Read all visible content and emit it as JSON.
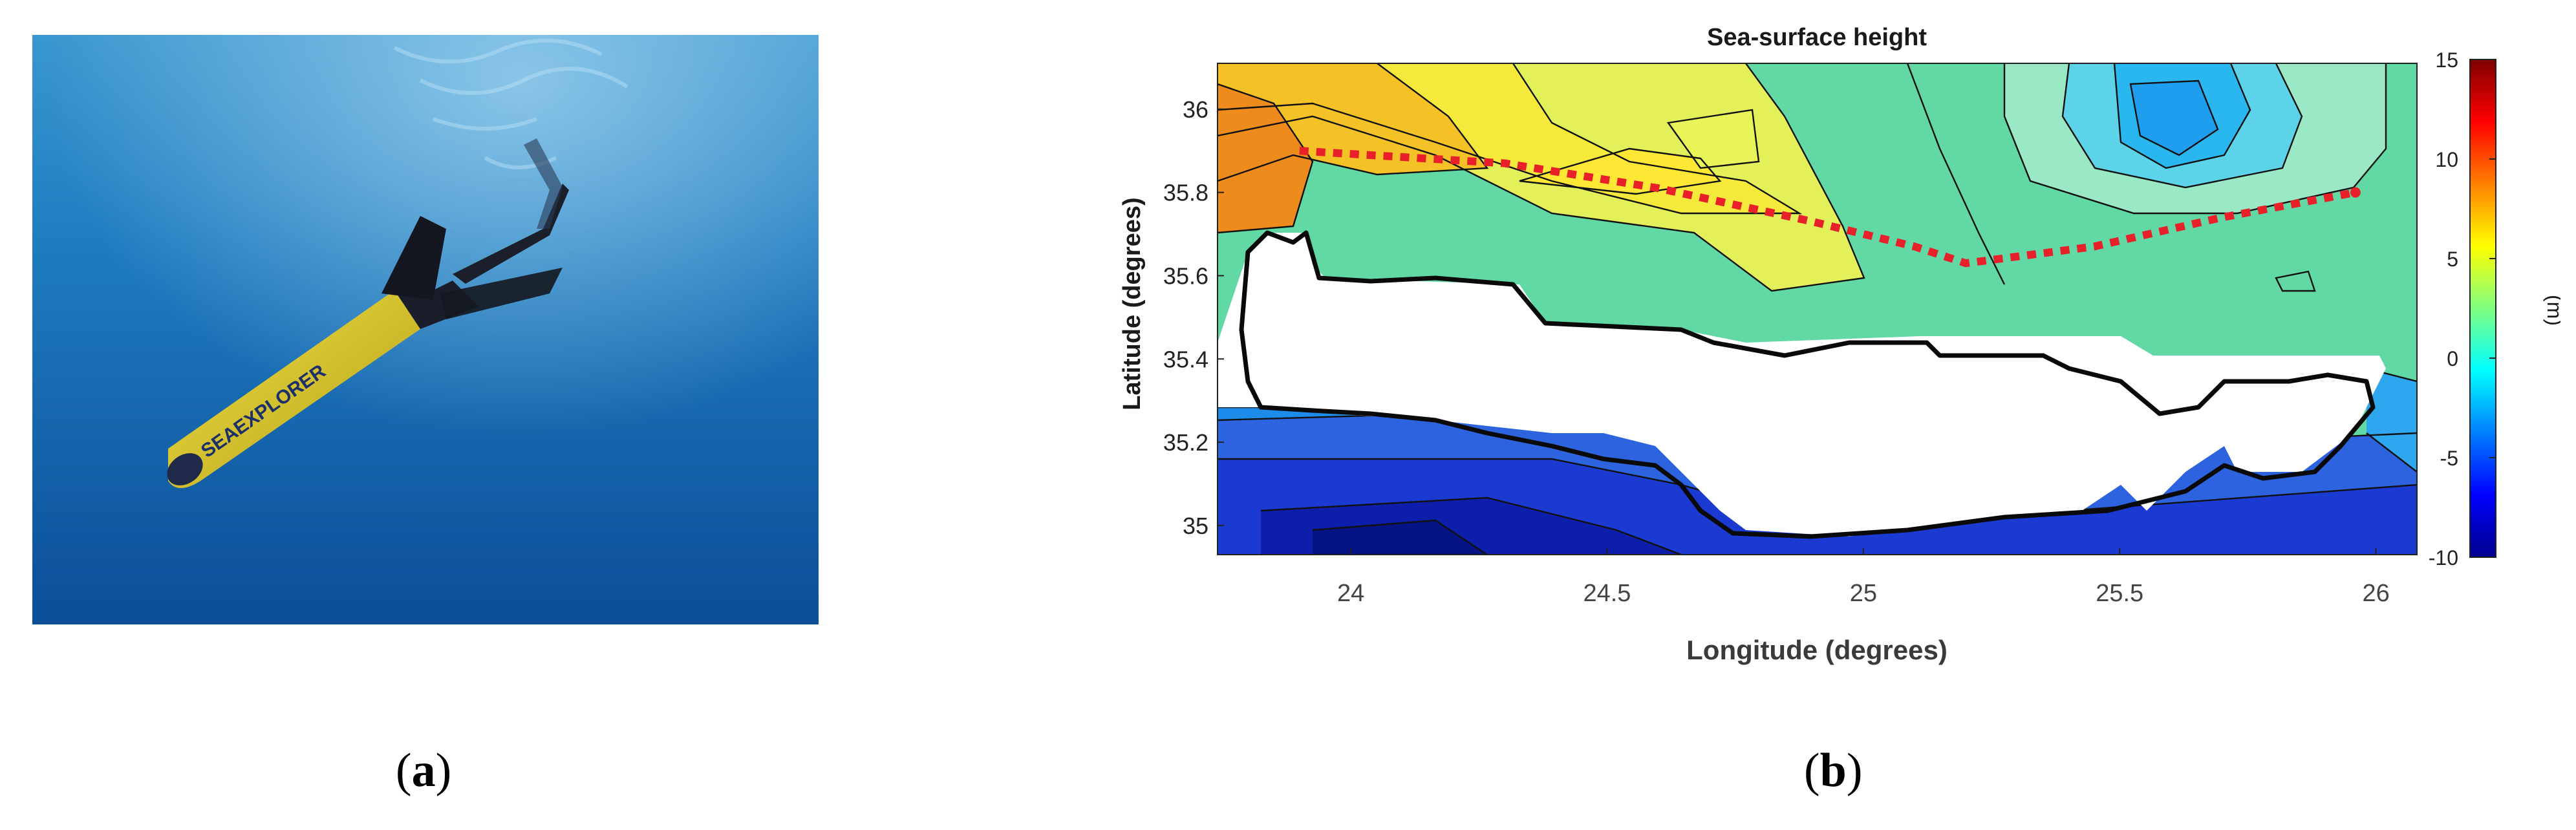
{
  "panels": {
    "a": {
      "label_open": "(",
      "label_letter": "a",
      "label_close": ")",
      "logo_text": "SEAEXPLORER"
    },
    "b": {
      "label_open": "(",
      "label_letter": "b",
      "label_close": ")"
    }
  },
  "chart_data": {
    "type": "contour",
    "title": "Sea-surface height",
    "xlabel": "Longitude (degrees)",
    "ylabel": "Latitude (degrees)",
    "xlim": [
      23.74,
      26.08
    ],
    "ylim": [
      34.93,
      36.11
    ],
    "x_ticks": [
      24,
      24.5,
      25,
      25.5,
      26
    ],
    "x_tick_labels": [
      "24",
      "24.5",
      "25",
      "25.5",
      "26"
    ],
    "y_ticks": [
      35,
      35.2,
      35.4,
      35.6,
      35.8,
      36
    ],
    "y_tick_labels": [
      "35",
      "35.2",
      "35.4",
      "35.6",
      "35.8",
      "36"
    ],
    "colorbar": {
      "label": "(m)",
      "range": [
        -10,
        15
      ],
      "ticks": [
        15,
        10,
        5,
        0,
        -5,
        -10
      ],
      "tick_labels": [
        "15",
        "10",
        "5",
        "0",
        "-5",
        "-10"
      ],
      "colormap": "jet"
    },
    "glider_track": {
      "color": "#e8202a",
      "style": "dotted",
      "points": [
        [
          23.9,
          35.9
        ],
        [
          24.3,
          35.87
        ],
        [
          24.6,
          35.81
        ],
        [
          24.9,
          35.73
        ],
        [
          25.1,
          35.67
        ],
        [
          25.2,
          35.63
        ],
        [
          25.45,
          35.67
        ],
        [
          25.7,
          35.74
        ],
        [
          25.96,
          35.8
        ]
      ]
    },
    "ssh_features": [
      {
        "kind": "high",
        "lon": 23.78,
        "lat": 35.85,
        "value": 11
      },
      {
        "kind": "low",
        "lon": 25.48,
        "lat": 35.98,
        "value": -2
      },
      {
        "kind": "low",
        "lon": 24.2,
        "lat": 34.95,
        "value": -10
      },
      {
        "kind": "high",
        "lon": 24.85,
        "lat": 35.85,
        "value": 7
      }
    ]
  }
}
